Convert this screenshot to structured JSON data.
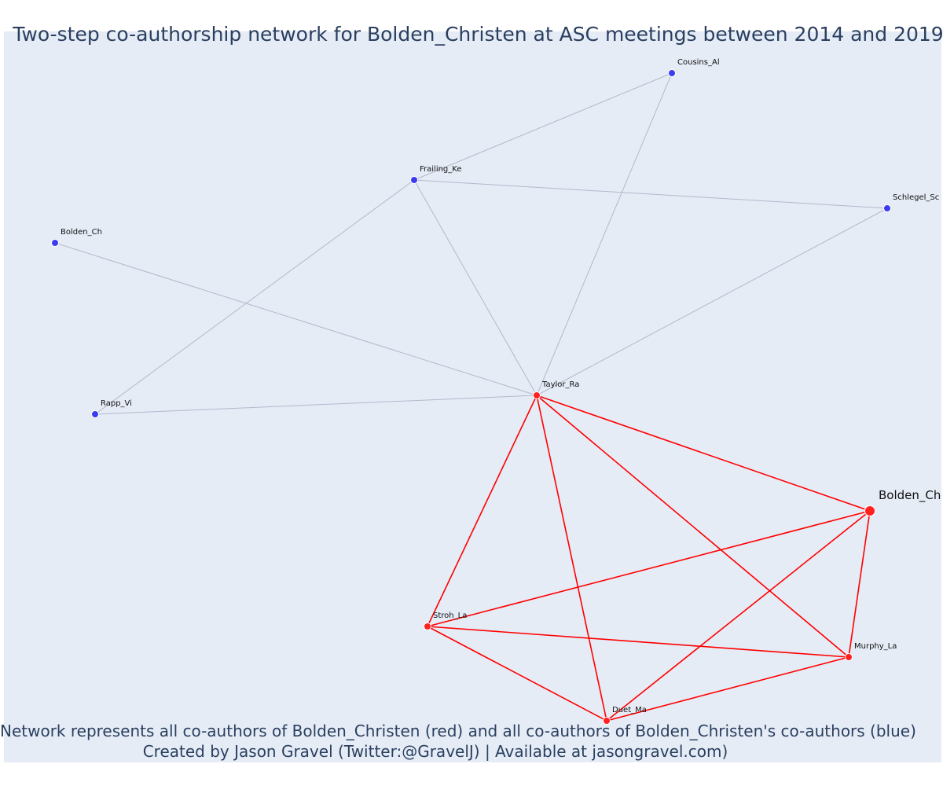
{
  "title": "Two-step co-authorship network for Bolden_Christen at ASC meetings between 2014 and 2019",
  "caption_line1": "Network represents all co-authors of Bolden_Christen (red) and all co-authors of Bolden_Christen's co-authors (blue)",
  "caption_line2": "Created by Jason Gravel (Twitter:@GravelJ) | Available at jasongravel.com)",
  "colors": {
    "background": "#e5ecf6",
    "first_degree": "#ff2020",
    "second_degree": "#3b3bf0",
    "first_degree_edge": "#ff0000",
    "second_degree_edge": "#b4b8cc",
    "text": "#2a3f5f"
  },
  "nodes": [
    {
      "id": "Bolden_Ch_focal",
      "label": "Bolden_Ch",
      "group": "focal"
    },
    {
      "id": "Taylor_Ra",
      "label": "Taylor_Ra",
      "group": "first"
    },
    {
      "id": "Stroh_La",
      "label": "Stroh_La",
      "group": "first"
    },
    {
      "id": "Duet_Ma",
      "label": "Duet_Ma",
      "group": "first"
    },
    {
      "id": "Murphy_La",
      "label": "Murphy_La",
      "group": "first"
    },
    {
      "id": "Cousins_Al",
      "label": "Cousins_Al",
      "group": "second"
    },
    {
      "id": "Frailing_Ke",
      "label": "Frailing_Ke",
      "group": "second"
    },
    {
      "id": "Schlegel_Sc",
      "label": "Schlegel_Sc",
      "group": "second"
    },
    {
      "id": "Bolden_Ch_2",
      "label": "Bolden_Ch",
      "group": "second"
    },
    {
      "id": "Rapp_Vi",
      "label": "Rapp_Vi",
      "group": "second"
    }
  ],
  "edges": [
    {
      "source": "Taylor_Ra",
      "target": "Bolden_Ch_focal",
      "type": "first"
    },
    {
      "source": "Taylor_Ra",
      "target": "Stroh_La",
      "type": "first"
    },
    {
      "source": "Taylor_Ra",
      "target": "Duet_Ma",
      "type": "first"
    },
    {
      "source": "Taylor_Ra",
      "target": "Murphy_La",
      "type": "first"
    },
    {
      "source": "Bolden_Ch_focal",
      "target": "Stroh_La",
      "type": "first"
    },
    {
      "source": "Bolden_Ch_focal",
      "target": "Duet_Ma",
      "type": "first"
    },
    {
      "source": "Bolden_Ch_focal",
      "target": "Murphy_La",
      "type": "first"
    },
    {
      "source": "Stroh_La",
      "target": "Murphy_La",
      "type": "first"
    },
    {
      "source": "Stroh_La",
      "target": "Duet_Ma",
      "type": "first"
    },
    {
      "source": "Duet_Ma",
      "target": "Murphy_La",
      "type": "first"
    },
    {
      "source": "Frailing_Ke",
      "target": "Cousins_Al",
      "type": "second"
    },
    {
      "source": "Frailing_Ke",
      "target": "Schlegel_Sc",
      "type": "second"
    },
    {
      "source": "Frailing_Ke",
      "target": "Taylor_Ra",
      "type": "second"
    },
    {
      "source": "Frailing_Ke",
      "target": "Rapp_Vi",
      "type": "second"
    },
    {
      "source": "Cousins_Al",
      "target": "Taylor_Ra",
      "type": "second"
    },
    {
      "source": "Schlegel_Sc",
      "target": "Taylor_Ra",
      "type": "second"
    },
    {
      "source": "Bolden_Ch_2",
      "target": "Taylor_Ra",
      "type": "second"
    },
    {
      "source": "Rapp_Vi",
      "target": "Taylor_Ra",
      "type": "second"
    }
  ]
}
